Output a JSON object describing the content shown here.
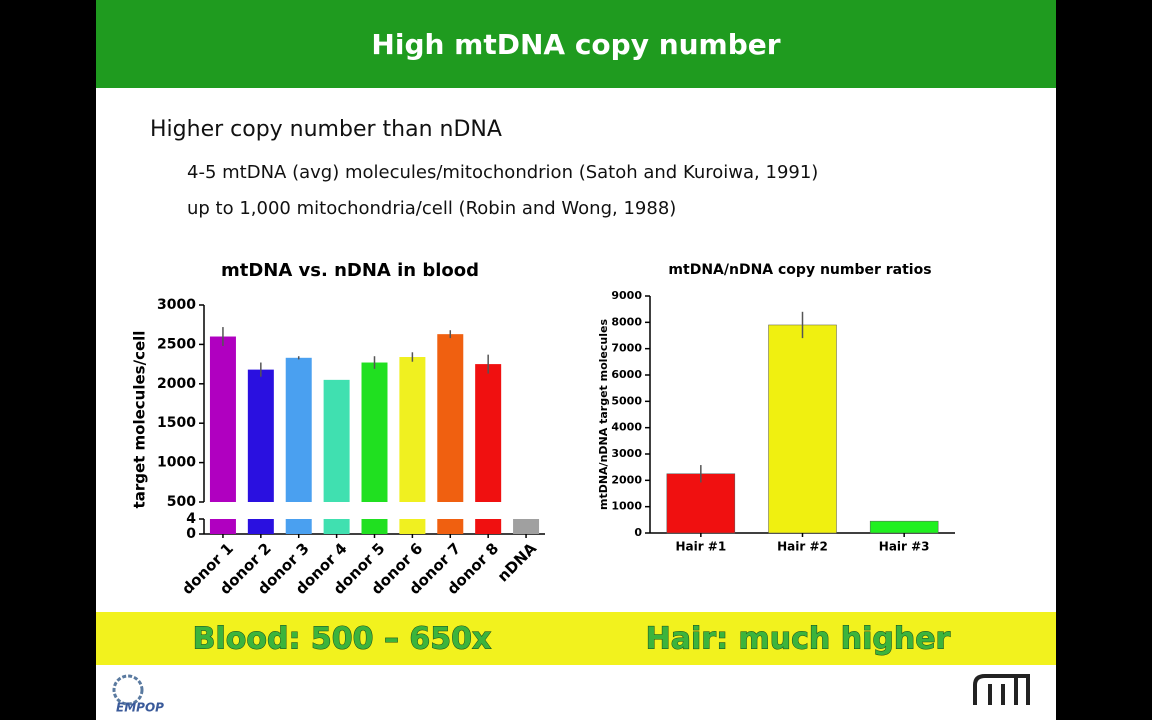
{
  "header": {
    "title": "High mtDNA copy number"
  },
  "bullets": {
    "main": "Higher copy number than nDNA",
    "sub": [
      "4-5 mtDNA (avg) molecules/mitochondrion (Satoh and Kuroiwa, 1991)",
      "up to 1,000 mitochondria/cell (Robin and Wong, 1988)"
    ]
  },
  "chart_data": [
    {
      "type": "bar",
      "title": "mtDNA vs. nDNA in blood",
      "y_label": "target molecules/cell",
      "categories": [
        "donor 1",
        "donor 2",
        "donor 3",
        "donor 4",
        "donor 5",
        "donor 6",
        "donor 7",
        "donor 8",
        "nDNA"
      ],
      "values": [
        2600,
        2180,
        2330,
        2050,
        2270,
        2340,
        2630,
        2250,
        4
      ],
      "errors": [
        120,
        90,
        20,
        0,
        80,
        60,
        50,
        120,
        0
      ],
      "colors": [
        "#b000c0",
        "#2a10e0",
        "#4aa0f0",
        "#40e0b0",
        "#20e020",
        "#f0f020",
        "#f06010",
        "#f01010",
        "#a0a0a0"
      ],
      "ylim": [
        0,
        3000
      ],
      "ybreak": [
        4,
        500
      ],
      "yticks": [
        0,
        4,
        500,
        1000,
        1500,
        2000,
        2500,
        3000
      ]
    },
    {
      "type": "bar",
      "title": "mtDNA/nDNA copy number ratios",
      "y_label": "mtDNA/nDNA target molecules",
      "categories": [
        "Hair #1",
        "Hair #2",
        "Hair #3"
      ],
      "values": [
        2250,
        7900,
        450
      ],
      "errors": [
        330,
        500,
        0
      ],
      "colors": [
        "#f01010",
        "#f0f010",
        "#20f020"
      ],
      "ylim": [
        0,
        9000
      ],
      "yticks": [
        0,
        1000,
        2000,
        3000,
        4000,
        5000,
        6000,
        7000,
        8000,
        9000
      ]
    }
  ],
  "footer": {
    "left": "Blood: 500 – 650x",
    "right": "Hair: much higher"
  },
  "logos": {
    "left": "EMPOP"
  }
}
